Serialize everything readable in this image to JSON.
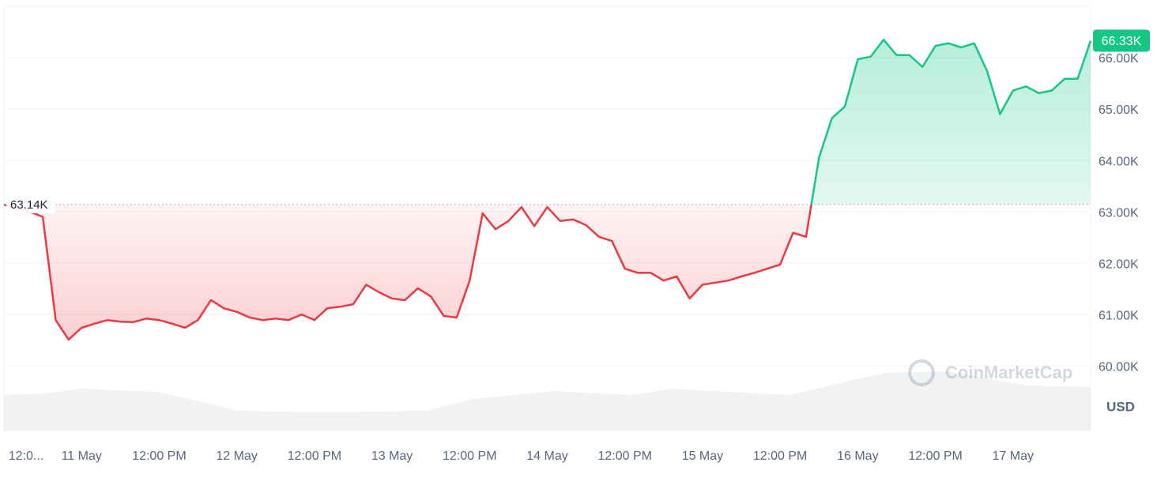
{
  "chart_data": {
    "type": "line",
    "series": [
      {
        "name": "Price",
        "color_up": "#16c784",
        "color_down": "#ea3943",
        "values": [
          63140,
          63050,
          63000,
          62900,
          60890,
          60510,
          60740,
          60820,
          60890,
          60860,
          60850,
          60920,
          60890,
          60820,
          60740,
          60890,
          61280,
          61120,
          61050,
          60940,
          60890,
          60920,
          60890,
          61000,
          60890,
          61120,
          61150,
          61200,
          61580,
          61430,
          61310,
          61280,
          61510,
          61350,
          60970,
          60940,
          61660,
          62970,
          62660,
          62820,
          63090,
          62720,
          63090,
          62820,
          62850,
          62740,
          62510,
          62430,
          61890,
          61810,
          61810,
          61660,
          61740,
          61310,
          61580,
          61620,
          61660,
          61740,
          61810,
          61890,
          61970,
          62590,
          62510,
          64050,
          64820,
          65050,
          65970,
          66020,
          66350,
          66050,
          66050,
          65820,
          66230,
          66280,
          66200,
          66280,
          65740,
          64900,
          65360,
          65440,
          65310,
          65360,
          65590,
          65590,
          66330
        ]
      }
    ],
    "baseline": {
      "value": 63140,
      "label": "63.14K"
    },
    "last_label": "66.33K",
    "unit": "USD",
    "watermark": "CoinMarketCap",
    "xlim": [
      0,
      84
    ],
    "xticks": [
      {
        "value": 0,
        "label": "12:0..."
      },
      {
        "value": 6,
        "label": "11 May"
      },
      {
        "value": 12,
        "label": "12:00 PM"
      },
      {
        "value": 18,
        "label": "12 May"
      },
      {
        "value": 24,
        "label": "12:00 PM"
      },
      {
        "value": 30,
        "label": "13 May"
      },
      {
        "value": 36,
        "label": "12:00 PM"
      },
      {
        "value": 42,
        "label": "14 May"
      },
      {
        "value": 48,
        "label": "12:00 PM"
      },
      {
        "value": 54,
        "label": "15 May"
      },
      {
        "value": 60,
        "label": "12:00 PM"
      },
      {
        "value": 66,
        "label": "16 May"
      },
      {
        "value": 72,
        "label": "12:00 PM"
      },
      {
        "value": 78,
        "label": "17 May"
      }
    ],
    "ylim": [
      58740,
      67000
    ],
    "yticks": [
      {
        "value": 60000,
        "label": "60.00K"
      },
      {
        "value": 61000,
        "label": "61.00K"
      },
      {
        "value": 62000,
        "label": "62.00K"
      },
      {
        "value": 63000,
        "label": "63.00K"
      },
      {
        "value": 64000,
        "label": "64.00K"
      },
      {
        "value": 65000,
        "label": "65.00K"
      },
      {
        "value": 66000,
        "label": "66.00K"
      }
    ],
    "grid": true
  }
}
